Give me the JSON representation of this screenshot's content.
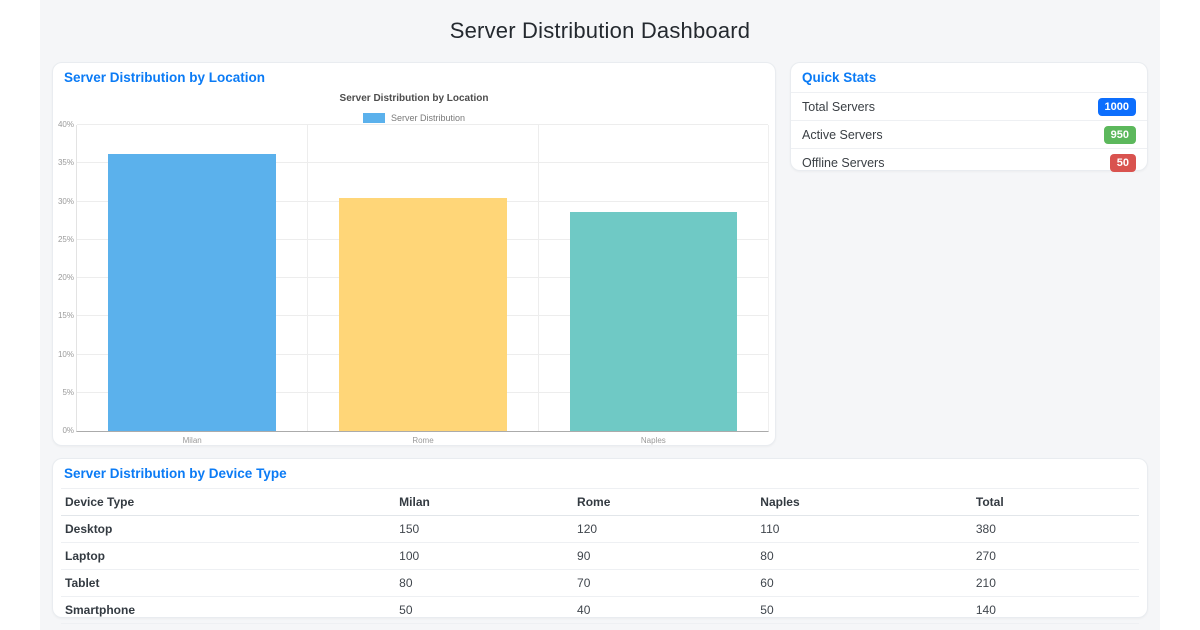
{
  "page": {
    "title": "Server Distribution Dashboard"
  },
  "colors": {
    "page_bg": "#f5f6f8",
    "panel_title": "#0b7bf5",
    "grid": "#ededed"
  },
  "chart_data": {
    "type": "bar",
    "title": "Server Distribution by Location",
    "legend": [
      "Server Distribution"
    ],
    "legend_position": "top",
    "categories": [
      "Milan",
      "Rome",
      "Naples"
    ],
    "values": [
      36.2,
      30.5,
      28.6
    ],
    "unit": "%",
    "ylim": [
      0,
      40
    ],
    "ytick_step": 5,
    "ytick_labels": [
      "0%",
      "5%",
      "10%",
      "15%",
      "20%",
      "25%",
      "30%",
      "35%",
      "40%"
    ],
    "bar_colors": [
      "#5bb1ec",
      "#ffd678",
      "#6fc9c5"
    ],
    "grid": true,
    "xlabel": "",
    "ylabel": ""
  },
  "location_panel": {
    "title": "Server Distribution by Location"
  },
  "quick_stats": {
    "title": "Quick Stats",
    "items": [
      {
        "label": "Total Servers",
        "value": "1000",
        "badge_color": "#0d6efd"
      },
      {
        "label": "Active Servers",
        "value": "950",
        "badge_color": "#5cb85c"
      },
      {
        "label": "Offline Servers",
        "value": "50",
        "badge_color": "#d9534f"
      }
    ]
  },
  "device_table": {
    "title": "Server Distribution by Device Type",
    "columns": [
      "Device Type",
      "Milan",
      "Rome",
      "Naples",
      "Total"
    ],
    "column_widths": [
      "31%",
      "16.5%",
      "17%",
      "20%",
      "15.5%"
    ],
    "rows": [
      [
        "Desktop",
        "150",
        "120",
        "110",
        "380"
      ],
      [
        "Laptop",
        "100",
        "90",
        "80",
        "270"
      ],
      [
        "Tablet",
        "80",
        "70",
        "60",
        "210"
      ],
      [
        "Smartphone",
        "50",
        "40",
        "50",
        "140"
      ]
    ]
  }
}
